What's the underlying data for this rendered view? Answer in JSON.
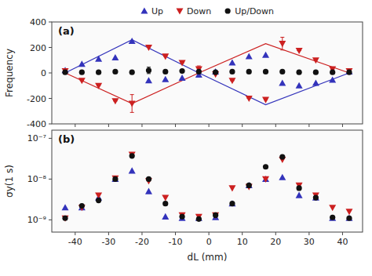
{
  "chart_data": [
    {
      "type": "scatter",
      "title": "(a)",
      "y_label": "Frequency",
      "xlim": [
        -47,
        46
      ],
      "xticks": [
        -40,
        -30,
        -20,
        -10,
        0,
        10,
        20,
        30,
        40
      ],
      "ylim": [
        -400,
        400
      ],
      "yticks": [
        -400,
        -200,
        0,
        200,
        400
      ],
      "tick_labels": "y",
      "legend": "top",
      "series": [
        {
          "type": "line",
          "color": "#3333BB",
          "x": [
            -43,
            -23,
            -3,
            17,
            42
          ],
          "values": [
            0,
            260,
            0,
            -250,
            0
          ]
        },
        {
          "type": "line",
          "color": "#CC2020",
          "x": [
            -43,
            -23,
            -3,
            17,
            42
          ],
          "values": [
            0,
            -240,
            0,
            230,
            0
          ]
        },
        {
          "name": "Up",
          "type": "scatter",
          "marker": "triangle-up",
          "color": "#3333BB",
          "x": [
            -43,
            -38,
            -33,
            -28,
            -23,
            -18,
            -13,
            -8,
            -3,
            2,
            7,
            12,
            17,
            22,
            27,
            32,
            37,
            42
          ],
          "values": [
            20,
            70,
            110,
            120,
            250,
            -60,
            -50,
            -40,
            -15,
            10,
            80,
            130,
            140,
            -80,
            -100,
            -80,
            -55,
            10
          ]
        },
        {
          "name": "Down",
          "type": "scatter",
          "marker": "triangle-down",
          "color": "#CC2020",
          "x": [
            -43,
            -38,
            -33,
            -28,
            -23,
            -18,
            -13,
            -8,
            -3,
            2,
            7,
            12,
            17,
            22,
            27,
            32,
            37,
            42
          ],
          "values": [
            15,
            -60,
            -100,
            -220,
            -240,
            200,
            130,
            80,
            30,
            -10,
            -60,
            -200,
            -210,
            230,
            175,
            100,
            30,
            15
          ],
          "errors": [
            0,
            0,
            0,
            0,
            70,
            0,
            0,
            0,
            25,
            0,
            0,
            0,
            0,
            50,
            0,
            0,
            0,
            0
          ]
        },
        {
          "name": "Up/Down",
          "type": "scatter",
          "marker": "circle",
          "color": "#111111",
          "x": [
            -43,
            -38,
            -33,
            -28,
            -23,
            -18,
            -13,
            -8,
            -3,
            2,
            7,
            12,
            17,
            22,
            27,
            32,
            37,
            42
          ],
          "values": [
            5,
            5,
            5,
            10,
            5,
            20,
            10,
            15,
            10,
            5,
            10,
            10,
            10,
            10,
            5,
            5,
            5,
            5
          ],
          "errors": [
            5,
            3,
            3,
            3,
            5,
            25,
            3,
            3,
            3,
            3,
            3,
            3,
            3,
            5,
            3,
            3,
            3,
            3
          ]
        }
      ]
    },
    {
      "type": "scatter",
      "title": "(b)",
      "x_label": "dL (mm)",
      "y_label": "σy(1 s)",
      "log": "y",
      "xlim": [
        -47,
        46
      ],
      "xticks": [
        -40,
        -30,
        -20,
        -10,
        0,
        10,
        20,
        30,
        40
      ],
      "ylim": [
        5.011872336272722e-10,
        1.5848931924611143e-07
      ],
      "yticks": [
        {
          "value": 1e-09,
          "label": "10⁻⁹"
        },
        {
          "value": 1e-08,
          "label": "10⁻⁸"
        },
        {
          "value": 1e-07,
          "label": "10⁻⁷"
        }
      ],
      "series": [
        {
          "type": "scatter",
          "marker": "triangle-up",
          "color": "#3333BB",
          "x": [
            -43,
            -38,
            -33,
            -28,
            -23,
            -18,
            -13,
            -8,
            -3,
            2,
            7,
            12,
            17,
            22,
            27,
            32,
            37,
            42
          ],
          "values": [
            2e-09,
            2e-09,
            3.5e-09,
            1e-08,
            1.6e-08,
            5e-09,
            1.2e-09,
            1.1e-09,
            1.1e-09,
            1.15e-09,
            2.5e-09,
            7e-09,
            1e-08,
            1.1e-08,
            4e-09,
            3.5e-09,
            1.1e-09,
            1.1e-09
          ]
        },
        {
          "type": "scatter",
          "marker": "triangle-down",
          "color": "#CC2020",
          "x": [
            -43,
            -38,
            -33,
            -28,
            -23,
            -18,
            -13,
            -8,
            -3,
            2,
            7,
            12,
            17,
            22,
            27,
            32,
            37,
            42
          ],
          "values": [
            1.1e-09,
            2e-09,
            4e-09,
            1.05e-08,
            4e-08,
            9e-09,
            3.5e-09,
            1.3e-09,
            1.2e-09,
            1.3e-09,
            6e-09,
            6.5e-09,
            1e-08,
            3e-08,
            7e-09,
            4e-09,
            2e-09,
            1.6e-09
          ]
        },
        {
          "type": "scatter",
          "marker": "circle",
          "color": "#111111",
          "x": [
            -43,
            -38,
            -33,
            -28,
            -23,
            -18,
            -13,
            -8,
            -3,
            2,
            7,
            12,
            17,
            22,
            27,
            32,
            37,
            42
          ],
          "values": [
            1.1e-09,
            2.2e-09,
            3e-09,
            1e-08,
            3.7e-08,
            1e-08,
            2.5e-09,
            1.2e-09,
            1.05e-09,
            1.3e-09,
            2.5e-09,
            7e-09,
            2e-08,
            3.5e-08,
            6e-09,
            3.5e-09,
            1.15e-09,
            1.1e-09
          ]
        }
      ]
    }
  ]
}
